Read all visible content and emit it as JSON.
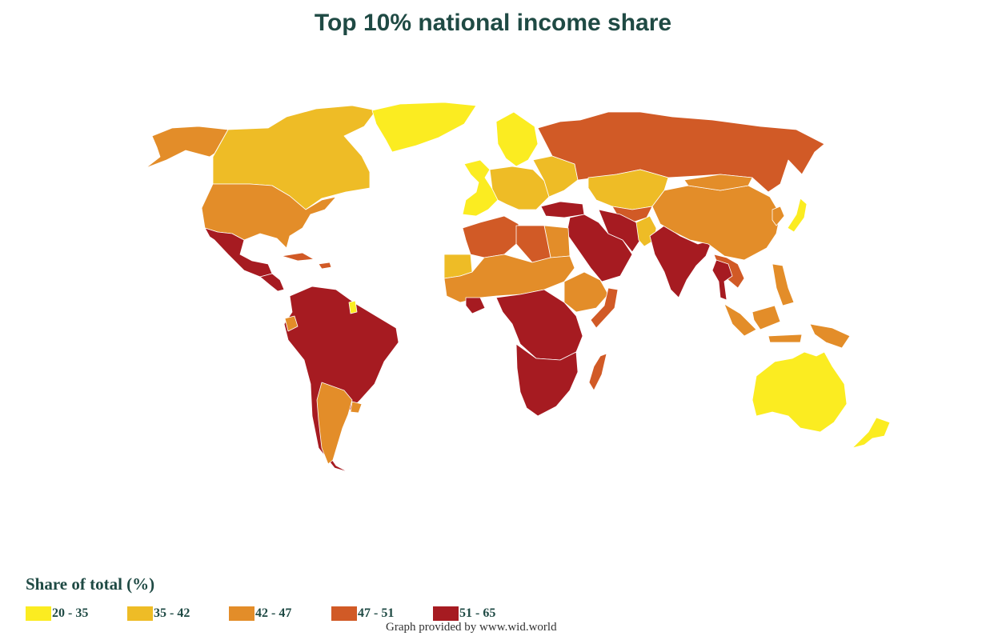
{
  "title": "Top 10% national income share",
  "legend": {
    "title": "Share of total (%)",
    "bins": [
      {
        "label": "20 - 35",
        "color": "#fbec21"
      },
      {
        "label": "35 - 42",
        "color": "#eebc26"
      },
      {
        "label": "42 - 47",
        "color": "#e38d29"
      },
      {
        "label": "47 - 51",
        "color": "#d15a26"
      },
      {
        "label": "51 - 65",
        "color": "#a61b21"
      }
    ]
  },
  "credit": "Graph provided by www.wid.world",
  "regions": [
    {
      "name": "Alaska",
      "bin": "42 - 47",
      "color": "#e38d29"
    },
    {
      "name": "Canada",
      "bin": "35 - 42",
      "color": "#eebc26"
    },
    {
      "name": "Greenland",
      "bin": "20 - 35",
      "color": "#fbec21"
    },
    {
      "name": "United States",
      "bin": "42 - 47",
      "color": "#e38d29"
    },
    {
      "name": "Mexico",
      "bin": "51 - 65",
      "color": "#a61b21"
    },
    {
      "name": "Central America",
      "bin": "51 - 65",
      "color": "#a61b21"
    },
    {
      "name": "Caribbean",
      "bin": "47 - 51",
      "color": "#d15a26"
    },
    {
      "name": "South America",
      "bin": "51 - 65",
      "color": "#a61b21"
    },
    {
      "name": "Argentina",
      "bin": "42 - 47",
      "color": "#e38d29"
    },
    {
      "name": "Uruguay",
      "bin": "42 - 47",
      "color": "#e38d29"
    },
    {
      "name": "Ecuador",
      "bin": "42 - 47",
      "color": "#e38d29"
    },
    {
      "name": "French Guiana",
      "bin": "20 - 35",
      "color": "#fbec21"
    },
    {
      "name": "Scandinavia",
      "bin": "20 - 35",
      "color": "#fbec21"
    },
    {
      "name": "Western Europe",
      "bin": "20 - 35",
      "color": "#fbec21"
    },
    {
      "name": "Central Europe",
      "bin": "35 - 42",
      "color": "#eebc26"
    },
    {
      "name": "Eastern Europe",
      "bin": "35 - 42",
      "color": "#eebc26"
    },
    {
      "name": "Russia",
      "bin": "47 - 51",
      "color": "#d15a26"
    },
    {
      "name": "Kazakhstan",
      "bin": "35 - 42",
      "color": "#eebc26"
    },
    {
      "name": "Central Asia",
      "bin": "47 - 51",
      "color": "#d15a26"
    },
    {
      "name": "Turkey",
      "bin": "51 - 65",
      "color": "#a61b21"
    },
    {
      "name": "Middle East",
      "bin": "51 - 65",
      "color": "#a61b21"
    },
    {
      "name": "Iran",
      "bin": "51 - 65",
      "color": "#a61b21"
    },
    {
      "name": "Pakistan",
      "bin": "35 - 42",
      "color": "#eebc26"
    },
    {
      "name": "India",
      "bin": "51 - 65",
      "color": "#a61b21"
    },
    {
      "name": "China",
      "bin": "42 - 47",
      "color": "#e38d29"
    },
    {
      "name": "Mongolia",
      "bin": "42 - 47",
      "color": "#e38d29"
    },
    {
      "name": "Japan",
      "bin": "20 - 35",
      "color": "#fbec21"
    },
    {
      "name": "Korea",
      "bin": "42 - 47",
      "color": "#e38d29"
    },
    {
      "name": "Southeast Asia",
      "bin": "47 - 51",
      "color": "#d15a26"
    },
    {
      "name": "Thailand",
      "bin": "51 - 65",
      "color": "#a61b21"
    },
    {
      "name": "Indonesia",
      "bin": "42 - 47",
      "color": "#e38d29"
    },
    {
      "name": "Philippines",
      "bin": "42 - 47",
      "color": "#e38d29"
    },
    {
      "name": "Papua New Guinea",
      "bin": "42 - 47",
      "color": "#e38d29"
    },
    {
      "name": "Australia",
      "bin": "20 - 35",
      "color": "#fbec21"
    },
    {
      "name": "New Zealand",
      "bin": "20 - 35",
      "color": "#fbec21"
    },
    {
      "name": "North Africa West",
      "bin": "47 - 51",
      "color": "#d15a26"
    },
    {
      "name": "Egypt",
      "bin": "42 - 47",
      "color": "#e38d29"
    },
    {
      "name": "Libya",
      "bin": "47 - 51",
      "color": "#d15a26"
    },
    {
      "name": "Mauritania",
      "bin": "35 - 42",
      "color": "#eebc26"
    },
    {
      "name": "Sahel",
      "bin": "42 - 47",
      "color": "#e38d29"
    },
    {
      "name": "Horn of Africa",
      "bin": "42 - 47",
      "color": "#e38d29"
    },
    {
      "name": "Somalia",
      "bin": "47 - 51",
      "color": "#d15a26"
    },
    {
      "name": "Cote d'Ivoire",
      "bin": "51 - 65",
      "color": "#a61b21"
    },
    {
      "name": "Central Africa",
      "bin": "51 - 65",
      "color": "#a61b21"
    },
    {
      "name": "Southern Africa",
      "bin": "51 - 65",
      "color": "#a61b21"
    },
    {
      "name": "Madagascar",
      "bin": "47 - 51",
      "color": "#d15a26"
    }
  ]
}
